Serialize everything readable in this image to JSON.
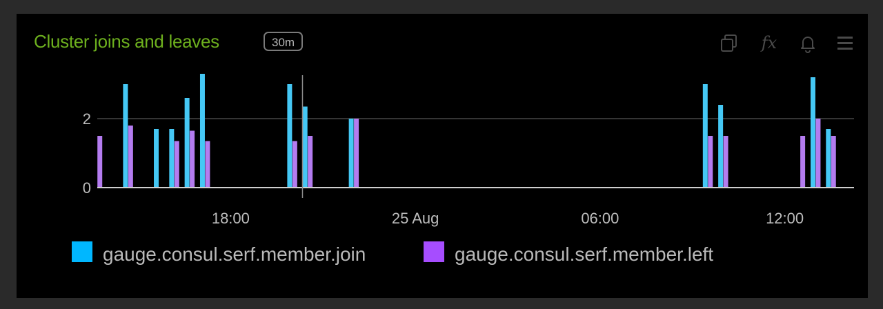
{
  "panel": {
    "title": "Cluster joins and leaves",
    "range_badge": "30m",
    "toolbar_icons": [
      "copy-icon",
      "function-icon",
      "bell-icon",
      "menu-icon"
    ],
    "function_glyph": "fx"
  },
  "colors": {
    "title": "#6db01e",
    "join": "#45c8f5",
    "left": "#b47cf0",
    "legend_join": "#00b7ff",
    "legend_left": "#a64dff",
    "panel_bg": "#000000",
    "page_bg": "#2a2a2a"
  },
  "chart_data": {
    "type": "bar",
    "ylim": [
      0,
      3.6
    ],
    "yticks": [
      0,
      2
    ],
    "x_range": [
      "24 Aug 13:40",
      "25 Aug 14:15"
    ],
    "xticks": [
      {
        "t": "24 Aug 18:00",
        "label": "18:00"
      },
      {
        "t": "25 Aug 00:00",
        "label": "25 Aug"
      },
      {
        "t": "25 Aug 06:00",
        "label": "06:00"
      },
      {
        "t": "25 Aug 12:00",
        "label": "12:00"
      }
    ],
    "cursor_time": "24 Aug 20:20",
    "grid": true,
    "legend_position": "bottom-left",
    "series": [
      {
        "name": "gauge.consul.serf.member.join",
        "points": [
          [
            "24 Aug 14:35",
            3.0
          ],
          [
            "24 Aug 15:35",
            1.7
          ],
          [
            "24 Aug 16:05",
            1.7
          ],
          [
            "24 Aug 16:35",
            2.6
          ],
          [
            "24 Aug 17:05",
            3.3
          ],
          [
            "24 Aug 19:55",
            3.0
          ],
          [
            "24 Aug 20:25",
            2.35
          ],
          [
            "24 Aug 21:55",
            2.0
          ],
          [
            "25 Aug 09:25",
            3.0
          ],
          [
            "25 Aug 09:55",
            2.4
          ],
          [
            "25 Aug 12:55",
            3.2
          ],
          [
            "25 Aug 13:25",
            1.7
          ]
        ]
      },
      {
        "name": "gauge.consul.serf.member.left",
        "points": [
          [
            "24 Aug 13:45",
            1.5
          ],
          [
            "24 Aug 14:45",
            1.8
          ],
          [
            "24 Aug 16:15",
            1.35
          ],
          [
            "24 Aug 16:45",
            1.65
          ],
          [
            "24 Aug 17:15",
            1.35
          ],
          [
            "24 Aug 20:05",
            1.35
          ],
          [
            "24 Aug 20:35",
            1.5
          ],
          [
            "24 Aug 22:05",
            2.0
          ],
          [
            "25 Aug 09:35",
            1.5
          ],
          [
            "25 Aug 10:05",
            1.5
          ],
          [
            "25 Aug 12:35",
            1.5
          ],
          [
            "25 Aug 13:05",
            2.0
          ],
          [
            "25 Aug 13:35",
            1.5
          ]
        ]
      }
    ]
  }
}
